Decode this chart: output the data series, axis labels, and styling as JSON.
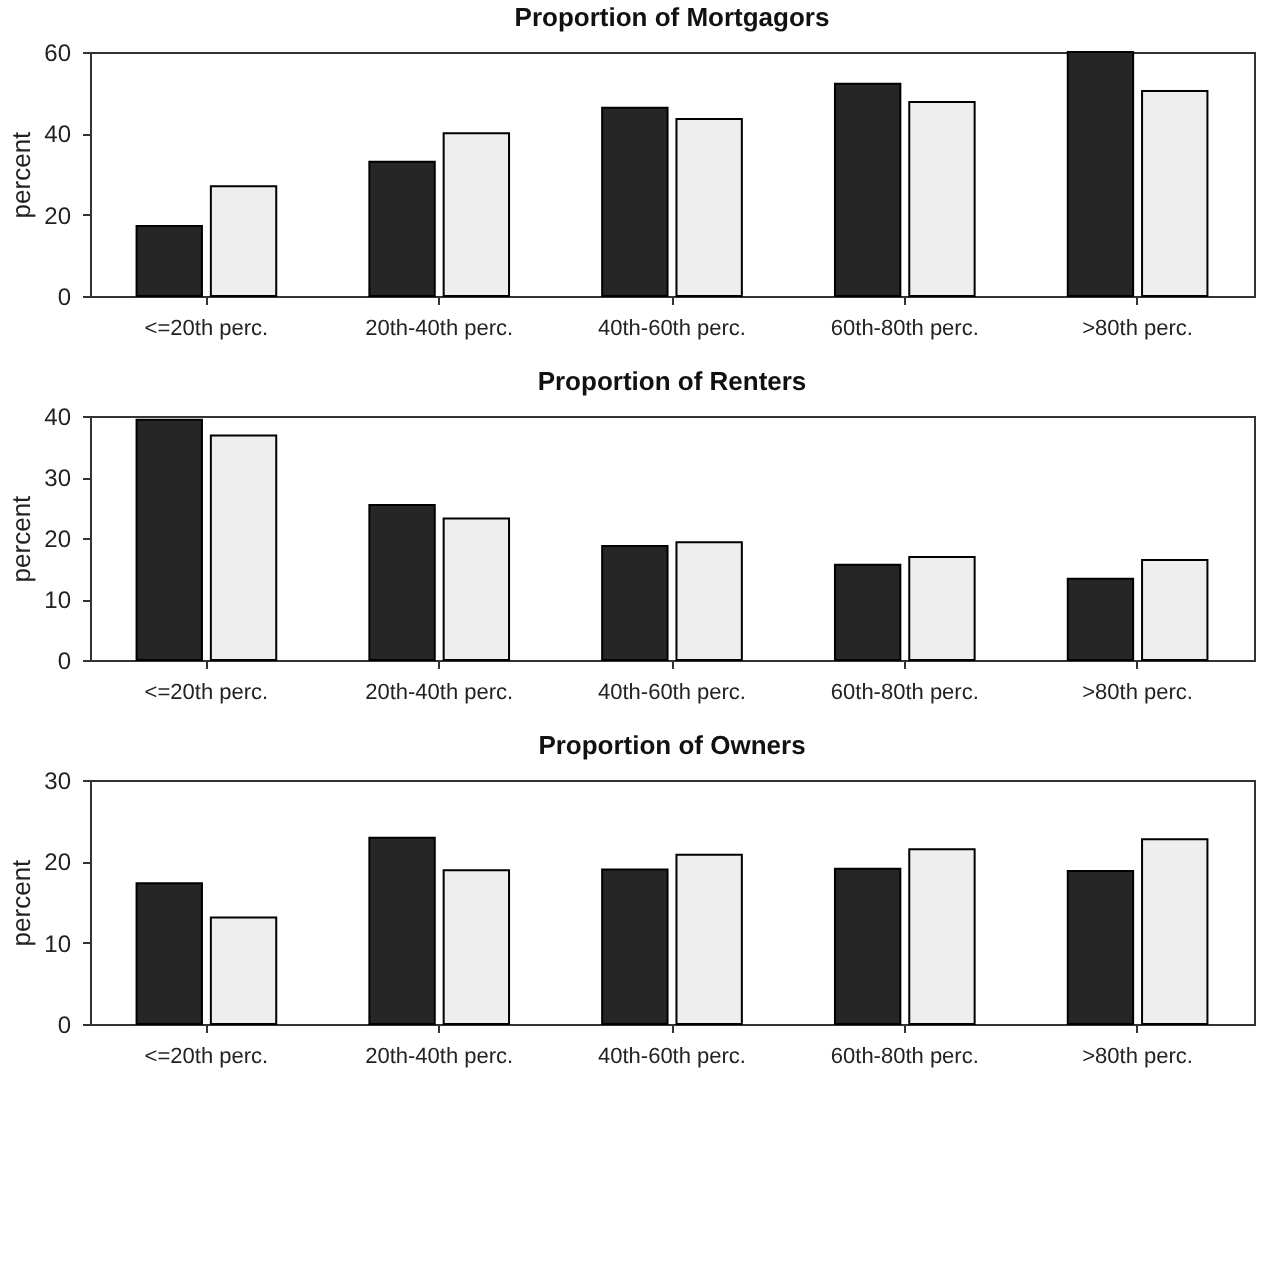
{
  "chart_data": [
    {
      "type": "bar",
      "title": "Proportion of Mortgagors",
      "ylabel": "percent",
      "categories": [
        "<=20th perc.",
        "20th-40th perc.",
        "40th-60th perc.",
        "60th-80th perc.",
        ">80th perc."
      ],
      "ylim": [
        0,
        60
      ],
      "yticks": [
        0,
        20,
        40,
        60
      ],
      "grid": false,
      "legend": false,
      "series": [
        {
          "color": "#262626",
          "values": [
            17.2,
            33.0,
            46.3,
            52.2,
            60.0
          ]
        },
        {
          "color": "#eeeeee",
          "values": [
            27.0,
            40.0,
            43.5,
            47.7,
            50.4
          ]
        }
      ]
    },
    {
      "type": "bar",
      "title": "Proportion of Renters",
      "ylabel": "percent",
      "categories": [
        "<=20th perc.",
        "20th-40th perc.",
        "40th-60th perc.",
        "60th-80th perc.",
        ">80th perc."
      ],
      "ylim": [
        0,
        40
      ],
      "yticks": [
        0,
        10,
        20,
        30,
        40
      ],
      "grid": false,
      "legend": false,
      "series": [
        {
          "color": "#262626",
          "values": [
            39.4,
            25.4,
            18.7,
            15.6,
            13.3
          ]
        },
        {
          "color": "#eeeeee",
          "values": [
            36.8,
            23.2,
            19.3,
            16.9,
            16.4
          ]
        }
      ]
    },
    {
      "type": "bar",
      "title": "Proportion of Owners",
      "ylabel": "percent",
      "categories": [
        "<=20th perc.",
        "20th-40th perc.",
        "40th-60th perc.",
        "60th-80th perc.",
        ">80th perc."
      ],
      "ylim": [
        0,
        30
      ],
      "yticks": [
        0,
        10,
        20,
        30
      ],
      "grid": false,
      "legend": false,
      "series": [
        {
          "color": "#262626",
          "values": [
            17.3,
            22.9,
            19.0,
            19.1,
            18.8
          ]
        },
        {
          "color": "#eeeeee",
          "values": [
            13.1,
            18.9,
            20.8,
            21.5,
            22.7
          ]
        }
      ]
    }
  ]
}
